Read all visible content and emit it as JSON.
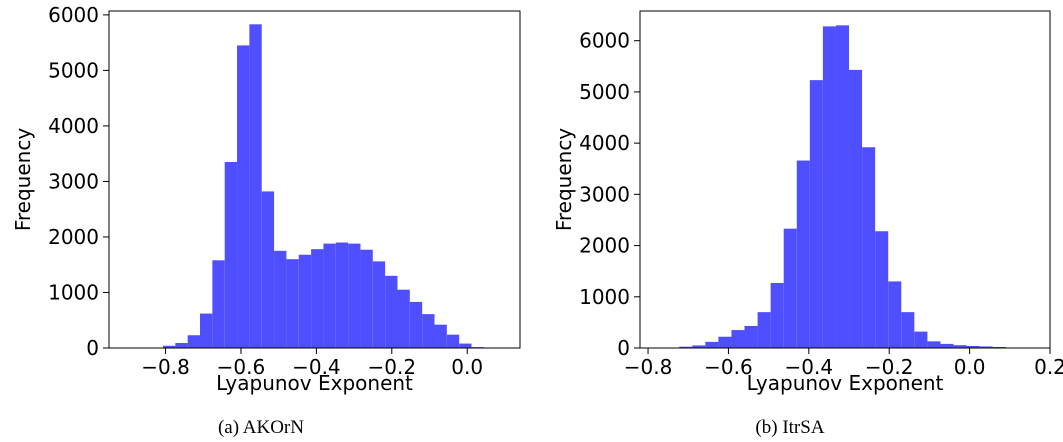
{
  "chart_data": [
    {
      "type": "bar",
      "caption": "(a) AKOrN",
      "xlabel": "Lyapunov Exponent",
      "ylabel": "Frequency",
      "xlim": [
        -0.95,
        0.14
      ],
      "ylim": [
        0,
        6070
      ],
      "xticks": [
        -0.8,
        -0.6,
        -0.4,
        -0.2,
        0.0
      ],
      "xtick_labels": [
        "−0.8",
        "−0.6",
        "−0.4",
        "−0.2",
        "0.0"
      ],
      "yticks": [
        0,
        1000,
        2000,
        3000,
        4000,
        5000,
        6000
      ],
      "ytick_labels": [
        "0",
        "1000",
        "2000",
        "3000",
        "4000",
        "5000",
        "6000"
      ],
      "bin_start": -0.905,
      "bin_width": 0.03273,
      "values": [
        2,
        4,
        8,
        40,
        90,
        230,
        620,
        1580,
        3350,
        5450,
        5830,
        2820,
        1750,
        1600,
        1680,
        1780,
        1880,
        1900,
        1880,
        1770,
        1560,
        1300,
        1050,
        830,
        610,
        420,
        240,
        80,
        15,
        3
      ],
      "color": "#4f4fff"
    },
    {
      "type": "bar",
      "caption": "(b) ItrSA",
      "xlabel": "Lyapunov Exponent",
      "ylabel": "Frequency",
      "xlim": [
        -0.82,
        0.2
      ],
      "ylim": [
        0,
        6580
      ],
      "xticks": [
        -0.8,
        -0.6,
        -0.4,
        -0.2,
        0.0,
        0.2
      ],
      "xtick_labels": [
        "−0.8",
        "−0.6",
        "−0.4",
        "−0.2",
        "0.0",
        "0.2"
      ],
      "yticks": [
        0,
        1000,
        2000,
        3000,
        4000,
        5000,
        6000
      ],
      "ytick_labels": [
        "0",
        "1000",
        "2000",
        "3000",
        "4000",
        "5000",
        "6000"
      ],
      "bin_start": -0.82,
      "bin_width": 0.0325,
      "values": [
        2,
        4,
        8,
        25,
        50,
        120,
        220,
        350,
        430,
        700,
        1270,
        2330,
        3660,
        5230,
        6280,
        6300,
        5430,
        3920,
        2280,
        1300,
        700,
        320,
        130,
        80,
        55,
        40,
        30,
        20,
        10,
        5
      ],
      "color": "#4f4fff"
    }
  ]
}
